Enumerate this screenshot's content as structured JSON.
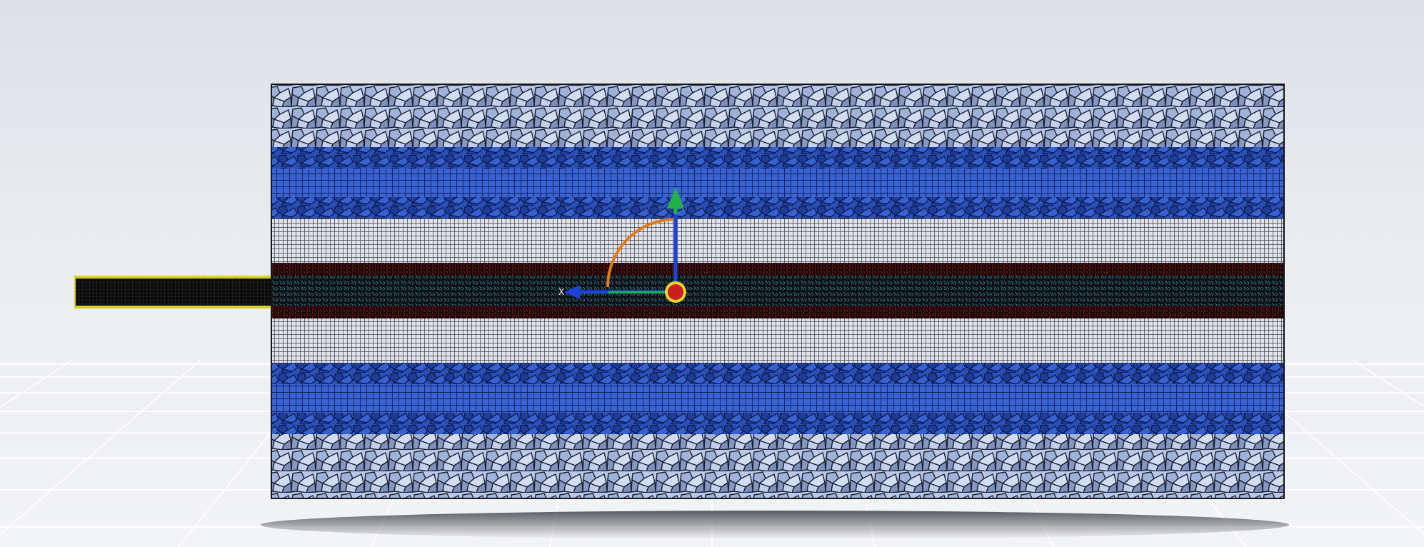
{
  "scene": {
    "view": "mesh-display",
    "background": {
      "top": "#dde0e6",
      "bottom": "#f3f4f7"
    },
    "floor_grid_color": "#ffffff",
    "shadow_color": "#4a4d54"
  },
  "mesh": {
    "zones": [
      {
        "name": "outer-polyhedral-zone",
        "color": "#b9c8e8",
        "edge": "#1a2030"
      },
      {
        "name": "blue-hex-zone",
        "color": "#2f57c7",
        "edge": "#0b1640"
      },
      {
        "name": "gray-hex-zone",
        "color": "#d5d9e0",
        "edge": "#2a2d33"
      },
      {
        "name": "core-zone",
        "color": "#0c0e12",
        "accents": [
          "#3fb0c8",
          "#b02020"
        ]
      }
    ],
    "inlet_pipe": {
      "fill": "#0a0a0a",
      "outline": "#d6d21e"
    }
  },
  "triad": {
    "x_axis_color": "#1d44d8",
    "y_axis_color": "#22b24a",
    "z_axis_color": "#c91f1f",
    "rotation_arc_color": "#e07a1a",
    "label": "X"
  }
}
